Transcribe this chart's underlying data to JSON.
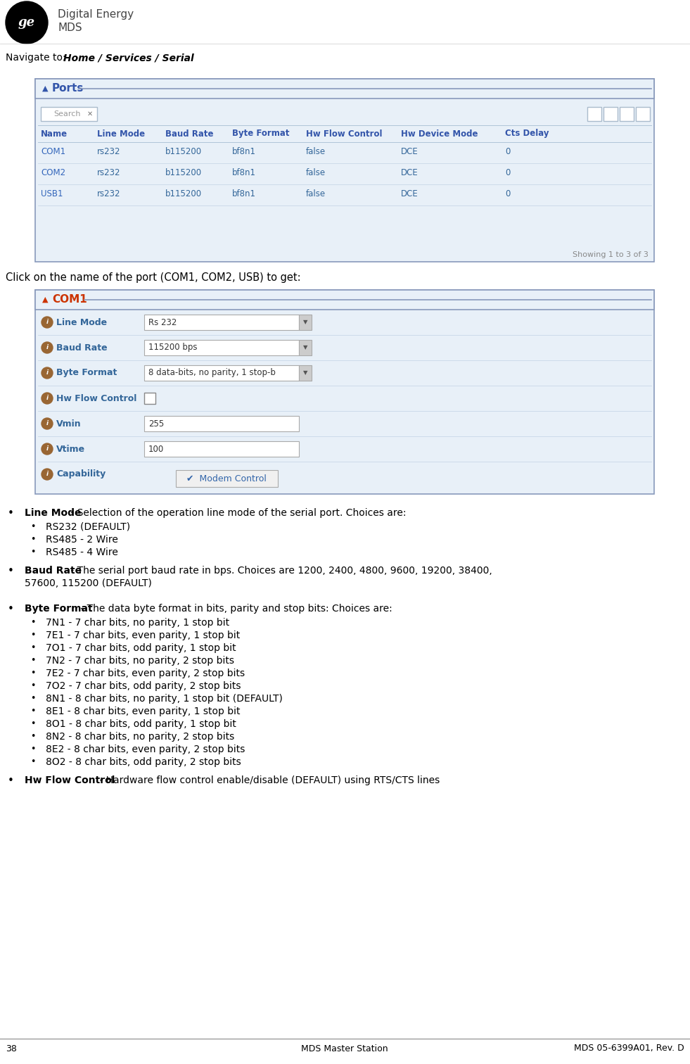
{
  "page_number": "38",
  "center_text": "MDS Master Station",
  "right_text": "MDS 05-6399A01, Rev. D",
  "navigate_text": "Navigate to: ",
  "navigate_bold": "Home / Services / Serial",
  "ports_table": {
    "title": "Ports",
    "headers": [
      "Name",
      "Line Mode",
      "Baud Rate",
      "Byte Format",
      "Hw Flow Control",
      "Hw Device Mode",
      "Cts Delay"
    ],
    "rows": [
      [
        "COM1",
        "rs232",
        "b115200",
        "bf8n1",
        "false",
        "DCE",
        "0"
      ],
      [
        "COM2",
        "rs232",
        "b115200",
        "bf8n1",
        "false",
        "DCE",
        "0"
      ],
      [
        "USB1",
        "rs232",
        "b115200",
        "bf8n1",
        "false",
        "DCE",
        "0"
      ]
    ],
    "footer": "Showing 1 to 3 of 3"
  },
  "click_text": "Click on the name of the port (COM1, COM2, USB) to get:",
  "com1_panel": {
    "title": "COM1",
    "fields": [
      {
        "label": "Line Mode",
        "value": "Rs 232",
        "type": "dropdown"
      },
      {
        "label": "Baud Rate",
        "value": "115200 bps",
        "type": "dropdown"
      },
      {
        "label": "Byte Format",
        "value": "8 data-bits, no parity, 1 stop-b",
        "type": "dropdown"
      },
      {
        "label": "Hw Flow Control",
        "value": "",
        "type": "checkbox"
      },
      {
        "label": "Vmin",
        "value": "255",
        "type": "input"
      },
      {
        "label": "Vtime",
        "value": "100",
        "type": "input"
      },
      {
        "label": "Capability",
        "value": "",
        "type": "none"
      }
    ],
    "modem_control": "✔  Modem Control"
  },
  "bullet_sections": [
    {
      "bold": "Line Mode",
      "text": " - Selection of the operation line mode of the serial port. Choices are:",
      "extra_line": "",
      "sub_bullets": [
        "RS232 (DEFAULT)",
        "RS485 - 2 Wire",
        "RS485 - 4 Wire"
      ]
    },
    {
      "bold": "Baud Rate",
      "text": " - The serial port baud rate in bps. Choices are 1200, 2400, 4800, 9600, 19200, 38400,",
      "extra_line": "57600, 115200 (DEFAULT)",
      "sub_bullets": []
    },
    {
      "bold": "Byte Format",
      "text": " - The data byte format in bits, parity and stop bits: Choices are:",
      "extra_line": "",
      "sub_bullets": [
        "7N1 - 7 char bits, no parity, 1 stop bit",
        "7E1 - 7 char bits, even parity, 1 stop bit",
        "7O1 - 7 char bits, odd parity, 1 stop bit",
        "7N2 - 7 char bits, no parity, 2 stop bits",
        "7E2 - 7 char bits, even parity, 2 stop bits",
        "7O2 - 7 char bits, odd parity, 2 stop bits",
        "8N1 - 8 char bits, no parity, 1 stop bit (DEFAULT)",
        "8E1 - 8 char bits, even parity, 1 stop bit",
        "8O1 - 8 char bits, odd parity, 1 stop bit",
        "8N2 - 8 char bits, no parity, 2 stop bits",
        "8E2 - 8 char bits, even parity, 2 stop bits",
        "8O2 - 8 char bits, odd parity, 2 stop bits"
      ]
    },
    {
      "bold": "Hw Flow Control",
      "text": " - Hardware flow control enable/disable (DEFAULT) using RTS/CTS lines",
      "extra_line": "",
      "sub_bullets": []
    }
  ],
  "colors": {
    "white": "#ffffff",
    "black": "#000000",
    "panel_bg": "#e8f0f8",
    "panel_border": "#8899bb",
    "panel_title_line": "#8899bb",
    "blue_title": "#3355aa",
    "red_title": "#cc3300",
    "blue_link": "#3366bb",
    "blue_data": "#336699",
    "gray_text": "#666666",
    "orange_circle": "#996633",
    "orange_label": "#336699",
    "input_border": "#aabbcc",
    "input_bg": "#ffffff",
    "dropdown_arrow_bg": "#cccccc",
    "separator": "#c8d8e8",
    "footer_text": "#888888",
    "search_text": "#999999",
    "header_blue": "#3355aa"
  }
}
